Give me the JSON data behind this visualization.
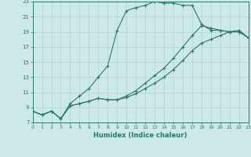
{
  "xlabel": "Humidex (Indice chaleur)",
  "bg_color": "#cce8e8",
  "line_color": "#2a7a6a",
  "xlim": [
    0,
    23
  ],
  "ylim": [
    7,
    23
  ],
  "xticks": [
    0,
    1,
    2,
    3,
    4,
    5,
    6,
    7,
    8,
    9,
    10,
    11,
    12,
    13,
    14,
    15,
    16,
    17,
    18,
    19,
    20,
    21,
    22,
    23
  ],
  "yticks": [
    7,
    9,
    11,
    13,
    15,
    17,
    19,
    21,
    23
  ],
  "grid_color": "#b0d4d0",
  "line1_x": [
    0,
    1,
    2,
    3,
    4,
    5,
    6,
    7,
    8,
    9,
    10,
    11,
    12,
    13,
    14,
    15,
    16,
    17,
    18,
    19,
    20,
    21,
    22,
    23
  ],
  "line1_y": [
    8.5,
    8.0,
    8.5,
    7.5,
    9.5,
    10.5,
    11.5,
    13.0,
    14.5,
    19.2,
    21.8,
    22.2,
    22.5,
    23.0,
    22.8,
    22.8,
    22.5,
    22.5,
    20.0,
    19.2,
    19.2,
    19.0,
    19.0,
    18.2
  ],
  "line2_x": [
    0,
    1,
    2,
    3,
    4,
    5,
    6,
    7,
    8,
    9,
    10,
    11,
    12,
    13,
    14,
    15,
    16,
    17,
    18,
    19,
    20,
    21,
    22,
    23
  ],
  "line2_y": [
    8.5,
    8.0,
    8.5,
    7.5,
    9.2,
    9.5,
    9.8,
    10.2,
    10.0,
    10.0,
    10.3,
    10.8,
    11.5,
    12.2,
    13.0,
    14.0,
    15.2,
    16.5,
    17.5,
    18.0,
    18.5,
    19.0,
    19.2,
    18.2
  ],
  "line3_x": [
    0,
    1,
    2,
    3,
    4,
    5,
    6,
    7,
    8,
    9,
    10,
    11,
    12,
    13,
    14,
    15,
    16,
    17,
    18,
    19,
    20,
    21,
    22,
    23
  ],
  "line3_y": [
    8.5,
    8.0,
    8.5,
    7.5,
    9.2,
    9.5,
    9.8,
    10.2,
    10.0,
    10.0,
    10.5,
    11.2,
    12.2,
    13.2,
    14.2,
    15.5,
    17.0,
    18.5,
    19.8,
    19.5,
    19.2,
    19.0,
    19.0,
    18.2
  ]
}
